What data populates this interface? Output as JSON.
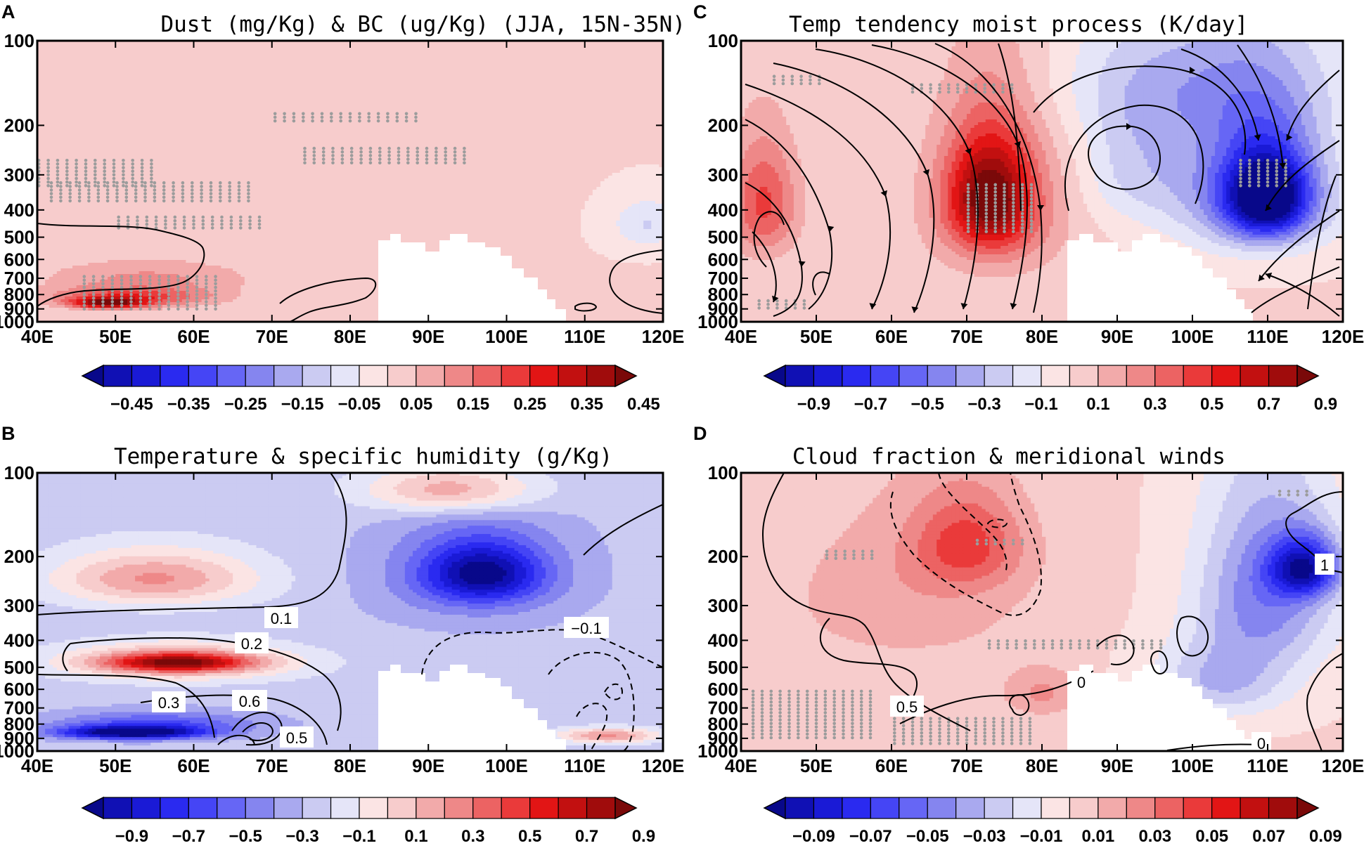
{
  "figure": {
    "colors": {
      "neg": [
        "#08088a",
        "#1010b4",
        "#1a1ad6",
        "#2a2af0",
        "#4545f5",
        "#6666f5",
        "#8585ef",
        "#a9a9ef",
        "#cbcbf2",
        "#e5e5f8"
      ],
      "pos": [
        "#fbe4e4",
        "#f7cccc",
        "#f2aaaa",
        "#ee8888",
        "#ec6363",
        "#ea3a3a",
        "#e21515",
        "#c21010",
        "#a00c0c",
        "#7a0909"
      ],
      "contour": "#000000",
      "stipple": "#9c9c9c"
    }
  },
  "chart_data": [
    {
      "id": "A",
      "type": "heatmap",
      "panel_label": "A",
      "title": "Dust (mg/Kg) & BC (ug/Kg) (JJA, 15N-35N)",
      "xlabel": "",
      "ylabel": "",
      "x_ticks": [
        "40E",
        "50E",
        "60E",
        "70E",
        "80E",
        "90E",
        "100E",
        "110E",
        "120E"
      ],
      "x_range": [
        40,
        120
      ],
      "y_ticks": [
        {
          "value": 100,
          "label": "100"
        },
        {
          "value": 200,
          "label": "200"
        },
        {
          "value": 300,
          "label": "300"
        },
        {
          "value": 400,
          "label": "400"
        },
        {
          "value": 500,
          "label": "500"
        },
        {
          "value": 600,
          "label": "600"
        },
        {
          "value": 700,
          "label": "700"
        },
        {
          "value": 800,
          "label": "800"
        },
        {
          "value": 900,
          "label": "900"
        },
        {
          "value": 1000,
          "label": "1000"
        }
      ],
      "y_range_hPa": [
        1000,
        100
      ],
      "background": 0.05,
      "shading_blobs": [
        {
          "lon": 54,
          "p": 700,
          "rlon": 15,
          "rp": 120,
          "v": 0.15
        },
        {
          "lon": 52,
          "p": 820,
          "rlon": 11,
          "rp": 70,
          "v": 0.25
        },
        {
          "lon": 49,
          "p": 860,
          "rlon": 5,
          "rp": 40,
          "v": 0.35
        },
        {
          "lon": 118,
          "p": 450,
          "rlon": 5,
          "rp": 100,
          "v": -0.05
        }
      ],
      "colorbar_labels": [
        "−0.45",
        "−0.35",
        "−0.25",
        "−0.15",
        "−0.05",
        "0.05",
        "0.15",
        "0.25",
        "0.35",
        "0.45"
      ],
      "contours": [
        "BC outline west of 65E",
        "BC outline near 70E-80E",
        "BC outline east of 105E"
      ],
      "contour_labels": [],
      "stipple": "significant regions",
      "vectors": false
    },
    {
      "id": "C",
      "type": "heatmap",
      "panel_label": "C",
      "title": "Temp tendency moist process (K/day]",
      "xlabel": "",
      "ylabel": "",
      "x_ticks": [
        "40E",
        "50E",
        "60E",
        "70E",
        "80E",
        "90E",
        "100E",
        "110E",
        "120E"
      ],
      "x_range": [
        40,
        120
      ],
      "y_ticks": [
        {
          "value": 100,
          "label": "100"
        },
        {
          "value": 200,
          "label": "200"
        },
        {
          "value": 300,
          "label": "300"
        },
        {
          "value": 400,
          "label": "400"
        },
        {
          "value": 500,
          "label": "500"
        },
        {
          "value": 600,
          "label": "600"
        },
        {
          "value": 700,
          "label": "700"
        },
        {
          "value": 800,
          "label": "800"
        },
        {
          "value": 900,
          "label": "900"
        },
        {
          "value": 1000,
          "label": "1000"
        }
      ],
      "y_range_hPa": [
        1000,
        100
      ],
      "background": 0.1,
      "shading_blobs": [
        {
          "lon": 74,
          "p": 380,
          "rlon": 10,
          "rp": 300,
          "v": 0.4
        },
        {
          "lon": 73,
          "p": 360,
          "rlon": 6,
          "rp": 180,
          "v": 0.7
        },
        {
          "lon": 43,
          "p": 380,
          "rlon": 5,
          "rp": 200,
          "v": 0.5
        },
        {
          "lon": 108,
          "p": 330,
          "rlon": 12,
          "rp": 220,
          "v": -0.4
        },
        {
          "lon": 110,
          "p": 360,
          "rlon": 6,
          "rp": 140,
          "v": -0.75
        },
        {
          "lon": 100,
          "p": 140,
          "rlon": 20,
          "rp": 90,
          "v": -0.15
        },
        {
          "lon": 92,
          "p": 280,
          "rlon": 8,
          "rp": 150,
          "v": -0.1
        }
      ],
      "colorbar_labels": [
        "−0.9",
        "−0.7",
        "−0.5",
        "−0.3",
        "−0.1",
        "0.1",
        "0.3",
        "0.5",
        "0.7",
        "0.9"
      ],
      "contours": [],
      "contour_labels": [],
      "stipple": "significant regions",
      "vectors": true
    },
    {
      "id": "B",
      "type": "heatmap",
      "panel_label": "B",
      "title": "Temperature & specific humidity (g/Kg)",
      "xlabel": "",
      "ylabel": "",
      "x_ticks": [
        "40E",
        "50E",
        "60E",
        "70E",
        "80E",
        "90E",
        "100E",
        "110E",
        "120E"
      ],
      "x_range": [
        40,
        120
      ],
      "y_ticks": [
        {
          "value": 100,
          "label": "100"
        },
        {
          "value": 200,
          "label": "200"
        },
        {
          "value": 300,
          "label": "300"
        },
        {
          "value": 400,
          "label": "400"
        },
        {
          "value": 500,
          "label": "500"
        },
        {
          "value": 600,
          "label": "600"
        },
        {
          "value": 700,
          "label": "700"
        },
        {
          "value": 800,
          "label": "800"
        },
        {
          "value": 900,
          "label": "900"
        },
        {
          "value": 1000,
          "label": "1000"
        }
      ],
      "y_range_hPa": [
        1000,
        100
      ],
      "background": -0.15,
      "shading_blobs": [
        {
          "lon": 96,
          "p": 230,
          "rlon": 14,
          "rp": 120,
          "v": -0.4
        },
        {
          "lon": 97,
          "p": 230,
          "rlon": 8,
          "rp": 60,
          "v": -0.7
        },
        {
          "lon": 58,
          "p": 480,
          "rlon": 16,
          "rp": 80,
          "v": 0.3
        },
        {
          "lon": 58,
          "p": 480,
          "rlon": 10,
          "rp": 40,
          "v": 0.5
        },
        {
          "lon": 55,
          "p": 240,
          "rlon": 14,
          "rp": 60,
          "v": 0.3
        },
        {
          "lon": 93,
          "p": 115,
          "rlon": 12,
          "rp": 25,
          "v": 0.3
        },
        {
          "lon": 55,
          "p": 800,
          "rlon": 14,
          "rp": 90,
          "v": -0.5
        },
        {
          "lon": 52,
          "p": 860,
          "rlon": 10,
          "rp": 50,
          "v": -0.9
        },
        {
          "lon": 113,
          "p": 880,
          "rlon": 7,
          "rp": 60,
          "v": 0.3
        }
      ],
      "colorbar_labels": [
        "−0.9",
        "−0.7",
        "−0.5",
        "−0.3",
        "−0.1",
        "0.1",
        "0.3",
        "0.5",
        "0.7",
        "0.9"
      ],
      "contours": [
        "specific humidity solid (positive)",
        "specific humidity dashed (negative)"
      ],
      "contour_labels": [
        "0.1",
        "0.2",
        "0.3",
        "0.6",
        "0.5",
        "−0.1"
      ],
      "stipple": "none",
      "vectors": false
    },
    {
      "id": "D",
      "type": "heatmap",
      "panel_label": "D",
      "title": "Cloud fraction & meridional winds",
      "xlabel": "",
      "ylabel": "",
      "x_ticks": [
        "40E",
        "50E",
        "60E",
        "70E",
        "80E",
        "90E",
        "100E",
        "110E",
        "120E"
      ],
      "x_range": [
        40,
        120
      ],
      "y_ticks": [
        {
          "value": 100,
          "label": "100"
        },
        {
          "value": 200,
          "label": "200"
        },
        {
          "value": 300,
          "label": "300"
        },
        {
          "value": 400,
          "label": "400"
        },
        {
          "value": 500,
          "label": "500"
        },
        {
          "value": 600,
          "label": "600"
        },
        {
          "value": 700,
          "label": "700"
        },
        {
          "value": 800,
          "label": "800"
        },
        {
          "value": 900,
          "label": "900"
        },
        {
          "value": 1000,
          "label": "1000"
        }
      ],
      "y_range_hPa": [
        1000,
        100
      ],
      "background": 0.01,
      "shading_blobs": [
        {
          "lon": 62,
          "p": 280,
          "rlon": 20,
          "rp": 220,
          "v": 0.025
        },
        {
          "lon": 70,
          "p": 180,
          "rlon": 8,
          "rp": 80,
          "v": 0.045
        },
        {
          "lon": 80,
          "p": 620,
          "rlon": 6,
          "rp": 140,
          "v": 0.03
        },
        {
          "lon": 110,
          "p": 260,
          "rlon": 10,
          "rp": 220,
          "v": -0.035
        },
        {
          "lon": 115,
          "p": 220,
          "rlon": 5,
          "rp": 60,
          "v": -0.06
        },
        {
          "lon": 104,
          "p": 560,
          "rlon": 10,
          "rp": 200,
          "v": -0.02
        }
      ],
      "colorbar_labels": [
        "−0.09",
        "−0.07",
        "−0.05",
        "−0.03",
        "−0.01",
        "0.01",
        "0.03",
        "0.05",
        "0.07",
        "0.09"
      ],
      "contours": [
        "meridional wind solid (positive)",
        "meridional wind dashed (negative)"
      ],
      "contour_labels": [
        "1",
        "0",
        "0.5",
        "0"
      ],
      "stipple": "significant regions",
      "vectors": false
    }
  ]
}
